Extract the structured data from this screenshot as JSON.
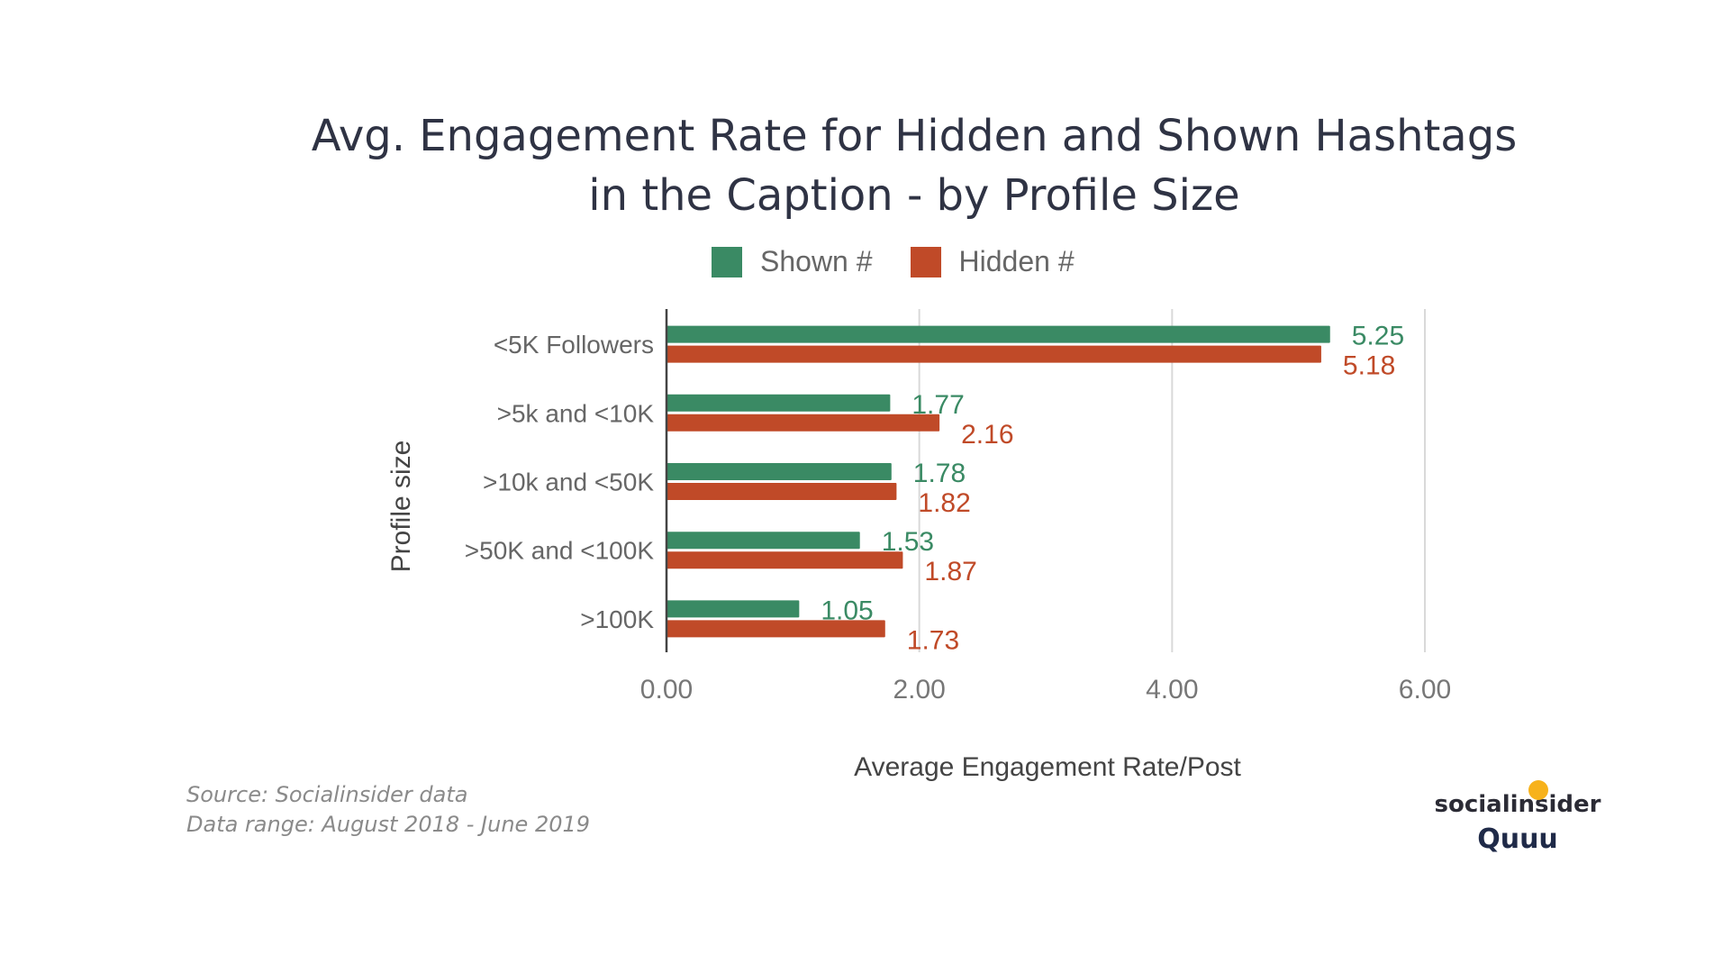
{
  "chart_data": {
    "type": "bar",
    "orientation": "horizontal",
    "title_lines": [
      "Avg. Engagement Rate for Hidden and Shown Hashtags",
      "in the Caption - by Profile Size"
    ],
    "xlabel": "Average Engagement Rate/Post",
    "ylabel": "Profile size",
    "categories": [
      "<5K Followers",
      ">5k and <10K",
      ">10k and <50K",
      ">50K and <100K",
      ">100K"
    ],
    "series": [
      {
        "name": "Shown #",
        "color": "#3a8a64",
        "values": [
          5.25,
          1.77,
          1.78,
          1.53,
          1.05
        ],
        "labels": [
          "5.25",
          "1.77",
          "1.78",
          "1.53",
          "1.05"
        ]
      },
      {
        "name": "Hidden #",
        "color": "#c04a28",
        "values": [
          5.18,
          2.16,
          1.82,
          1.87,
          1.73
        ],
        "labels": [
          "5.18",
          "2.16",
          "1.82",
          "1.87",
          "1.73"
        ]
      }
    ],
    "xlim": [
      0,
      6
    ],
    "xticks": [
      0,
      2,
      4,
      6
    ],
    "xtick_labels": [
      "0.00",
      "2.00",
      "4.00",
      "6.00"
    ],
    "grid": true,
    "legend_position": "top"
  },
  "footer": {
    "source": "Source: Socialinsider data",
    "range": "Data range: August 2018 - June 2019"
  },
  "logo": {
    "line1": "socialinsider",
    "line2": "Quuu"
  }
}
